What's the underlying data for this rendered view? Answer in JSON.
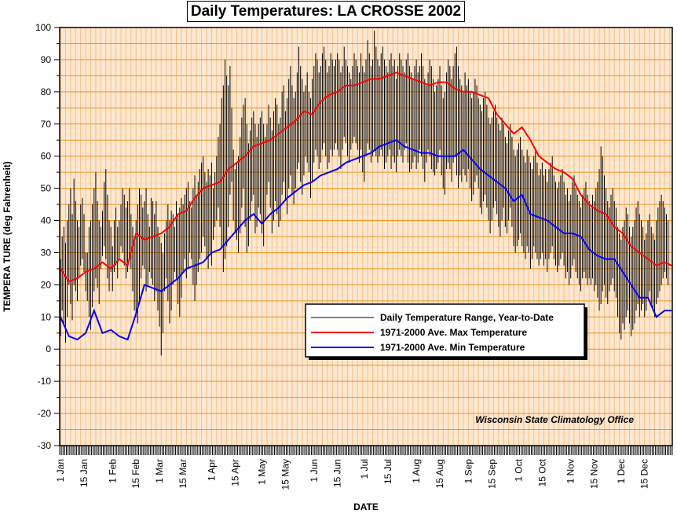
{
  "chart_data": {
    "type": "line",
    "title": "Daily Temperatures: LA CROSSE 2002",
    "xlabel": "DATE",
    "ylabel": "TEMPERA TURE (deg Fahrenheit)",
    "ylim": [
      -30,
      100
    ],
    "yticks": [
      -30,
      -20,
      -10,
      0,
      10,
      20,
      30,
      40,
      50,
      60,
      70,
      80,
      90,
      100
    ],
    "xlim": [
      "2002-01-01",
      "2002-12-31"
    ],
    "x_tick_labels": [
      {
        "label": "1 Jan",
        "date": "2002-01-01"
      },
      {
        "label": "15 Jan",
        "date": "2002-01-15"
      },
      {
        "label": "1 Feb",
        "date": "2002-02-01"
      },
      {
        "label": "15 Feb",
        "date": "2002-02-15"
      },
      {
        "label": "1 Mar",
        "date": "2002-03-01"
      },
      {
        "label": "15 Mar",
        "date": "2002-03-15"
      },
      {
        "label": "1 Apr",
        "date": "2002-04-01"
      },
      {
        "label": "15 Apr",
        "date": "2002-04-15"
      },
      {
        "label": "1 May",
        "date": "2002-05-01"
      },
      {
        "label": "15 May",
        "date": "2002-05-15"
      },
      {
        "label": "1 Jun",
        "date": "2002-06-01"
      },
      {
        "label": "15 Jun",
        "date": "2002-06-15"
      },
      {
        "label": "1 Jul",
        "date": "2002-07-01"
      },
      {
        "label": "15 Jul",
        "date": "2002-07-15"
      },
      {
        "label": "1 Aug",
        "date": "2002-08-01"
      },
      {
        "label": "15 Aug",
        "date": "2002-08-15"
      },
      {
        "label": "1 Sep",
        "date": "2002-09-01"
      },
      {
        "label": "15 Sep",
        "date": "2002-09-15"
      },
      {
        "label": "1 Oct",
        "date": "2002-10-01"
      },
      {
        "label": "15 Oct",
        "date": "2002-10-15"
      },
      {
        "label": "1 Nov",
        "date": "2002-11-01"
      },
      {
        "label": "15 Nov",
        "date": "2002-11-15"
      },
      {
        "label": "1 Dec",
        "date": "2002-12-01"
      },
      {
        "label": "15 Dec",
        "date": "2002-12-15"
      }
    ],
    "grid": true,
    "legend_position": "lower-right",
    "annotation": "Wisconsin State Climatology Office",
    "colors": {
      "background": "#fce7cf",
      "horizontal_grid": "#f0961e",
      "vertical_grid": "#f5c08a",
      "range_bars": "#000000",
      "max_line": "#ff0000",
      "min_line": "#0000ff"
    },
    "series": [
      {
        "name": "Daily Temperature Range, Year-to-Date",
        "kind": "range",
        "color": "#000000",
        "low": [
          4,
          12,
          8,
          2,
          10,
          20,
          14,
          9,
          20,
          18,
          15,
          22,
          26,
          28,
          24,
          18,
          15,
          10,
          6,
          13,
          18,
          22,
          19,
          14,
          25,
          29,
          32,
          28,
          22,
          18,
          24,
          18,
          24,
          26,
          22,
          28,
          32,
          30,
          26,
          22,
          24,
          28,
          25,
          18,
          12,
          10,
          8,
          15,
          22,
          26,
          25,
          18,
          20,
          24,
          22,
          20,
          15,
          18,
          12,
          7,
          -2,
          5,
          18,
          22,
          15,
          8,
          12,
          20,
          24,
          22,
          14,
          10,
          16,
          24,
          28,
          22,
          25,
          30,
          28,
          20,
          15,
          20,
          24,
          28,
          30,
          35,
          32,
          28,
          25,
          30,
          26,
          34,
          38,
          40,
          44,
          38,
          32,
          24,
          28,
          32,
          38,
          48,
          52,
          40,
          36,
          34,
          30,
          36,
          44,
          50,
          38,
          30,
          32,
          40,
          46,
          48,
          36,
          38,
          44,
          42,
          36,
          32,
          40,
          48,
          52,
          44,
          36,
          40,
          46,
          42,
          38,
          40,
          48,
          52,
          46,
          42,
          50,
          54,
          48,
          45,
          50,
          56,
          58,
          52,
          48,
          54,
          60,
          58,
          55,
          47,
          52,
          58,
          62,
          60,
          56,
          58,
          62,
          64,
          60,
          56,
          58,
          62,
          60,
          62,
          64,
          62,
          60,
          56,
          62,
          66,
          64,
          60,
          58,
          62,
          64,
          66,
          64,
          62,
          58,
          62,
          55,
          52,
          60,
          64,
          62,
          58,
          60,
          62,
          60,
          58,
          60,
          62,
          60,
          56,
          58,
          60,
          62,
          56,
          60,
          58,
          55,
          60,
          62,
          60,
          58,
          62,
          64,
          58,
          55,
          56,
          58,
          60,
          56,
          58,
          62,
          60,
          56,
          52,
          58,
          62,
          60,
          56,
          55,
          54,
          56,
          58,
          62,
          54,
          50,
          48,
          56,
          58,
          56,
          52,
          58,
          60,
          54,
          50,
          54,
          52,
          56,
          54,
          52,
          56,
          50,
          46,
          48,
          52,
          54,
          50,
          44,
          42,
          46,
          48,
          44,
          40,
          36,
          40,
          44,
          46,
          42,
          38,
          35,
          40,
          44,
          38,
          36,
          40,
          44,
          38,
          32,
          30,
          32,
          34,
          36,
          32,
          30,
          28,
          32,
          30,
          25,
          28,
          32,
          30,
          28,
          26,
          28,
          30,
          26,
          28,
          24,
          28,
          30,
          32,
          28,
          26,
          24,
          26,
          28,
          30,
          26,
          22,
          24,
          20,
          22,
          26,
          28,
          24,
          22,
          20,
          18,
          22,
          24,
          22,
          20,
          22,
          20,
          22,
          18,
          20,
          16,
          12,
          14,
          18,
          20,
          16,
          14,
          18,
          20,
          22,
          18,
          16,
          10,
          5,
          3,
          8,
          6,
          10,
          12,
          8,
          4,
          6,
          8,
          12,
          14,
          10,
          12,
          14,
          10,
          12,
          16,
          18,
          14,
          12,
          10,
          14,
          16,
          18,
          20,
          22,
          24,
          22,
          20
        ],
        "high": [
          28,
          35,
          38,
          33,
          40,
          45,
          50,
          42,
          53,
          46,
          40,
          38,
          45,
          47,
          42,
          30,
          30,
          38,
          40,
          45,
          50,
          55,
          46,
          40,
          38,
          43,
          52,
          56,
          48,
          40,
          38,
          32,
          40,
          44,
          38,
          40,
          45,
          50,
          48,
          44,
          46,
          50,
          42,
          38,
          35,
          40,
          45,
          50,
          48,
          44,
          46,
          50,
          42,
          38,
          47,
          46,
          42,
          46,
          38,
          35,
          33,
          30,
          36,
          40,
          45,
          40,
          43,
          42,
          38,
          46,
          42,
          44,
          47,
          45,
          48,
          50,
          52,
          46,
          44,
          50,
          54,
          48,
          52,
          56,
          58,
          60,
          55,
          52,
          56,
          54,
          58,
          50,
          55,
          60,
          66,
          70,
          78,
          82,
          90,
          85,
          82,
          88,
          75,
          62,
          56,
          58,
          60,
          66,
          72,
          76,
          78,
          70,
          64,
          68,
          72,
          74,
          70,
          66,
          70,
          72,
          74,
          70,
          66,
          70,
          76,
          72,
          68,
          74,
          78,
          76,
          70,
          72,
          80,
          82,
          74,
          78,
          84,
          88,
          82,
          78,
          80,
          86,
          94,
          88,
          84,
          80,
          82,
          86,
          80,
          78,
          84,
          88,
          92,
          90,
          86,
          88,
          92,
          94,
          90,
          86,
          88,
          92,
          90,
          88,
          90,
          92,
          90,
          86,
          88,
          94,
          90,
          88,
          86,
          84,
          88,
          92,
          90,
          88,
          86,
          92,
          88,
          86,
          90,
          96,
          92,
          88,
          90,
          99,
          94,
          90,
          88,
          92,
          94,
          90,
          88,
          86,
          90,
          92,
          88,
          90,
          84,
          88,
          92,
          90,
          88,
          86,
          90,
          92,
          88,
          86,
          84,
          88,
          90,
          86,
          88,
          92,
          88,
          84,
          82,
          86,
          90,
          88,
          84,
          80,
          82,
          84,
          88,
          82,
          78,
          80,
          86,
          90,
          88,
          84,
          88,
          92,
          94,
          88,
          84,
          82,
          80,
          86,
          82,
          84,
          80,
          78,
          80,
          84,
          82,
          78,
          76,
          74,
          78,
          80,
          76,
          72,
          70,
          72,
          74,
          76,
          72,
          70,
          68,
          72,
          70,
          66,
          64,
          68,
          70,
          66,
          62,
          60,
          62,
          64,
          66,
          62,
          60,
          58,
          62,
          60,
          58,
          56,
          60,
          62,
          58,
          54,
          56,
          58,
          54,
          56,
          52,
          56,
          58,
          60,
          54,
          52,
          50,
          52,
          54,
          56,
          52,
          48,
          50,
          46,
          48,
          52,
          54,
          50,
          48,
          46,
          44,
          48,
          50,
          52,
          48,
          46,
          44,
          48,
          46,
          50,
          52,
          56,
          63,
          60,
          54,
          50,
          46,
          44,
          48,
          50,
          46,
          44,
          38,
          36,
          34,
          38,
          40,
          44,
          42,
          38,
          35,
          38,
          40,
          44,
          46,
          42,
          40,
          38,
          34,
          36,
          40,
          42,
          38,
          36,
          34,
          40,
          44,
          46,
          48,
          46,
          44,
          42,
          40
        ]
      },
      {
        "name": "1971-2000 Ave. Max Temperature",
        "kind": "line",
        "color": "#ff0000",
        "x": [
          "2002-01-01",
          "2002-01-06",
          "2002-01-11",
          "2002-01-16",
          "2002-01-21",
          "2002-01-26",
          "2002-01-31",
          "2002-02-05",
          "2002-02-10",
          "2002-02-15",
          "2002-02-20",
          "2002-02-25",
          "2002-03-02",
          "2002-03-07",
          "2002-03-12",
          "2002-03-17",
          "2002-03-22",
          "2002-03-27",
          "2002-04-01",
          "2002-04-06",
          "2002-04-11",
          "2002-04-16",
          "2002-04-21",
          "2002-04-26",
          "2002-05-01",
          "2002-05-06",
          "2002-05-11",
          "2002-05-16",
          "2002-05-21",
          "2002-05-26",
          "2002-05-31",
          "2002-06-05",
          "2002-06-10",
          "2002-06-15",
          "2002-06-20",
          "2002-06-25",
          "2002-06-30",
          "2002-07-05",
          "2002-07-10",
          "2002-07-15",
          "2002-07-20",
          "2002-07-25",
          "2002-07-30",
          "2002-08-04",
          "2002-08-09",
          "2002-08-14",
          "2002-08-19",
          "2002-08-24",
          "2002-08-29",
          "2002-09-03",
          "2002-09-08",
          "2002-09-13",
          "2002-09-18",
          "2002-09-23",
          "2002-09-28",
          "2002-10-03",
          "2002-10-08",
          "2002-10-13",
          "2002-10-18",
          "2002-10-23",
          "2002-10-28",
          "2002-11-02",
          "2002-11-07",
          "2002-11-12",
          "2002-11-17",
          "2002-11-22",
          "2002-11-27",
          "2002-12-02",
          "2002-12-07",
          "2002-12-12",
          "2002-12-17",
          "2002-12-22",
          "2002-12-27",
          "2002-12-31"
        ],
        "y": [
          25,
          21,
          22,
          24,
          25,
          27,
          25,
          28,
          26,
          36,
          34,
          35,
          36,
          38,
          42,
          43,
          47,
          50,
          51,
          52,
          56,
          58,
          60,
          63,
          64,
          65,
          67,
          69,
          71,
          74,
          73,
          77,
          79,
          80,
          82,
          82,
          83,
          84,
          84,
          85,
          86,
          85,
          84,
          83,
          82,
          83,
          83,
          81,
          80,
          80,
          79,
          78,
          73,
          70,
          67,
          69,
          65,
          60,
          58,
          56,
          55,
          53,
          48,
          45,
          43,
          42,
          38,
          36,
          32,
          30,
          28,
          26,
          27,
          26
        ]
      },
      {
        "name": "1971-2000 Ave. Min Temperature",
        "kind": "line",
        "color": "#0000ff",
        "x": [
          "2002-01-01",
          "2002-01-06",
          "2002-01-11",
          "2002-01-16",
          "2002-01-21",
          "2002-01-26",
          "2002-01-31",
          "2002-02-05",
          "2002-02-10",
          "2002-02-15",
          "2002-02-20",
          "2002-02-25",
          "2002-03-02",
          "2002-03-07",
          "2002-03-12",
          "2002-03-17",
          "2002-03-22",
          "2002-03-27",
          "2002-04-01",
          "2002-04-06",
          "2002-04-11",
          "2002-04-16",
          "2002-04-21",
          "2002-04-26",
          "2002-05-01",
          "2002-05-06",
          "2002-05-11",
          "2002-05-16",
          "2002-05-21",
          "2002-05-26",
          "2002-05-31",
          "2002-06-05",
          "2002-06-10",
          "2002-06-15",
          "2002-06-20",
          "2002-06-25",
          "2002-06-30",
          "2002-07-05",
          "2002-07-10",
          "2002-07-15",
          "2002-07-20",
          "2002-07-25",
          "2002-07-30",
          "2002-08-04",
          "2002-08-09",
          "2002-08-14",
          "2002-08-19",
          "2002-08-24",
          "2002-08-29",
          "2002-09-03",
          "2002-09-08",
          "2002-09-13",
          "2002-09-18",
          "2002-09-23",
          "2002-09-28",
          "2002-10-03",
          "2002-10-08",
          "2002-10-13",
          "2002-10-18",
          "2002-10-23",
          "2002-10-28",
          "2002-11-02",
          "2002-11-07",
          "2002-11-12",
          "2002-11-17",
          "2002-11-22",
          "2002-11-27",
          "2002-12-02",
          "2002-12-07",
          "2002-12-12",
          "2002-12-17",
          "2002-12-22",
          "2002-12-27",
          "2002-12-31"
        ],
        "y": [
          10,
          4,
          3,
          5,
          12,
          5,
          6,
          4,
          3,
          11,
          20,
          19,
          18,
          20,
          22,
          25,
          26,
          27,
          30,
          31,
          34,
          37,
          40,
          42,
          39,
          42,
          44,
          47,
          49,
          51,
          52,
          54,
          55,
          56,
          58,
          59,
          60,
          61,
          63,
          64,
          65,
          63,
          62,
          61,
          61,
          60,
          60,
          60,
          62,
          59,
          56,
          54,
          52,
          50,
          46,
          48,
          42,
          41,
          40,
          38,
          36,
          36,
          35,
          31,
          29,
          28,
          28,
          24,
          20,
          16,
          16,
          10,
          12,
          12
        ]
      }
    ]
  }
}
